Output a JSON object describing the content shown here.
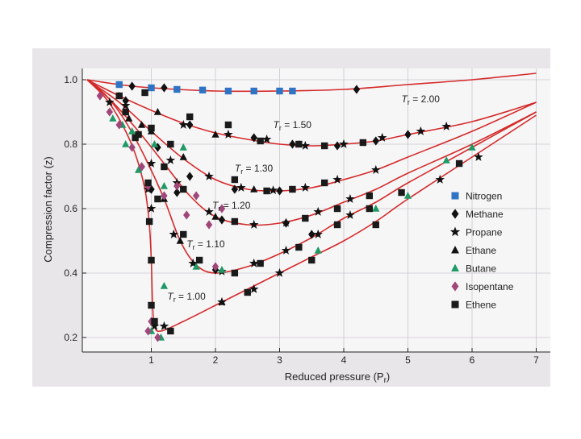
{
  "colors": {
    "page": "#ffffff",
    "photo": "#e9e6ea",
    "plot_bg": "#f7f6f7",
    "curve": "#d42a2a",
    "nitrogen": "#2f74c4",
    "methane": "#111111",
    "propane": "#111111",
    "ethane": "#111111",
    "butane": "#1f9a66",
    "isopentane": "#a0477a",
    "ethene": "#1a1a1a"
  },
  "chart_data": {
    "type": "scatter",
    "title": "",
    "xlabel": "Reduced pressure (P",
    "xlabel_sub": "r",
    "xlabel_close": ")",
    "ylabel": "Compression factor (z)",
    "xlim": [
      0,
      7.1
    ],
    "ylim": [
      0.2,
      1.0
    ],
    "xticks": [
      1,
      2,
      3,
      4,
      5,
      6,
      7
    ],
    "yticks": [
      0.2,
      0.4,
      0.6,
      0.8,
      1.0
    ],
    "ytick_labels": [
      "0.2",
      "0.4",
      "0.6",
      "0.8",
      "1.0"
    ],
    "grid": true,
    "legend_position": "right",
    "curves": [
      {
        "prefix": "T",
        "sub": "r",
        "text": " = 2.00",
        "label_at": [
          4.9,
          0.93
        ],
        "points": [
          [
            0,
            1.0
          ],
          [
            0.5,
            0.985
          ],
          [
            1,
            0.975
          ],
          [
            2,
            0.965
          ],
          [
            3,
            0.965
          ],
          [
            4,
            0.97
          ],
          [
            5,
            0.985
          ],
          [
            6,
            1.0
          ],
          [
            7,
            1.02
          ]
        ]
      },
      {
        "prefix": "T",
        "sub": "r",
        "text": " = 1.50",
        "label_at": [
          2.9,
          0.85
        ],
        "points": [
          [
            0,
            1.0
          ],
          [
            0.5,
            0.95
          ],
          [
            1,
            0.905
          ],
          [
            1.5,
            0.865
          ],
          [
            2,
            0.835
          ],
          [
            2.5,
            0.815
          ],
          [
            3,
            0.8
          ],
          [
            3.5,
            0.795
          ],
          [
            4,
            0.8
          ],
          [
            4.5,
            0.81
          ],
          [
            5,
            0.83
          ],
          [
            6,
            0.87
          ],
          [
            7,
            0.93
          ]
        ]
      },
      {
        "prefix": "T",
        "sub": "r",
        "text": " = 1.30",
        "label_at": [
          2.3,
          0.715
        ],
        "points": [
          [
            0,
            1.0
          ],
          [
            0.5,
            0.93
          ],
          [
            1,
            0.84
          ],
          [
            1.5,
            0.755
          ],
          [
            2,
            0.69
          ],
          [
            2.5,
            0.66
          ],
          [
            3,
            0.655
          ],
          [
            3.5,
            0.665
          ],
          [
            4,
            0.69
          ],
          [
            4.5,
            0.72
          ],
          [
            5,
            0.76
          ],
          [
            6,
            0.84
          ],
          [
            7,
            0.93
          ]
        ]
      },
      {
        "prefix": "T",
        "sub": "r",
        "text": " = 1.20",
        "label_at": [
          1.95,
          0.6
        ],
        "points": [
          [
            0,
            1.0
          ],
          [
            0.4,
            0.93
          ],
          [
            0.8,
            0.84
          ],
          [
            1.2,
            0.74
          ],
          [
            1.6,
            0.64
          ],
          [
            2,
            0.575
          ],
          [
            2.5,
            0.55
          ],
          [
            3,
            0.555
          ],
          [
            3.5,
            0.58
          ],
          [
            4,
            0.62
          ],
          [
            4.5,
            0.66
          ],
          [
            5,
            0.71
          ],
          [
            6,
            0.8
          ],
          [
            7,
            0.9
          ]
        ]
      },
      {
        "prefix": "T",
        "sub": "r",
        "text": " = 1.10",
        "label_at": [
          1.55,
          0.48
        ],
        "points": [
          [
            0,
            1.0
          ],
          [
            0.3,
            0.95
          ],
          [
            0.6,
            0.87
          ],
          [
            0.9,
            0.76
          ],
          [
            1.2,
            0.63
          ],
          [
            1.45,
            0.5
          ],
          [
            1.7,
            0.425
          ],
          [
            2,
            0.4
          ],
          [
            2.5,
            0.42
          ],
          [
            3,
            0.46
          ],
          [
            3.5,
            0.51
          ],
          [
            4,
            0.57
          ],
          [
            4.5,
            0.62
          ],
          [
            5,
            0.68
          ],
          [
            6,
            0.79
          ],
          [
            7,
            0.9
          ]
        ]
      },
      {
        "prefix": "T",
        "sub": "r",
        "text": " = 1.00",
        "label_at": [
          1.25,
          0.318
        ],
        "points": [
          [
            0,
            1.0
          ],
          [
            0.3,
            0.94
          ],
          [
            0.55,
            0.86
          ],
          [
            0.75,
            0.77
          ],
          [
            0.9,
            0.66
          ],
          [
            0.97,
            0.55
          ],
          [
            1.0,
            0.44
          ],
          [
            1.02,
            0.3
          ],
          [
            1.05,
            0.235
          ],
          [
            1.15,
            0.22
          ],
          [
            1.5,
            0.25
          ],
          [
            2,
            0.3
          ],
          [
            2.5,
            0.35
          ],
          [
            3,
            0.4
          ],
          [
            3.5,
            0.45
          ],
          [
            4,
            0.5
          ],
          [
            4.5,
            0.56
          ],
          [
            5,
            0.63
          ],
          [
            6,
            0.76
          ],
          [
            7,
            0.89
          ]
        ]
      }
    ],
    "legend": [
      {
        "name": "Nitrogen",
        "marker": "square",
        "color_key": "nitrogen"
      },
      {
        "name": "Methane",
        "marker": "diamond",
        "color_key": "methane"
      },
      {
        "name": "Propane",
        "marker": "star",
        "color_key": "propane"
      },
      {
        "name": "Ethane",
        "marker": "triangle",
        "color_key": "ethane"
      },
      {
        "name": "Butane",
        "marker": "triangle",
        "color_key": "butane"
      },
      {
        "name": "Isopentane",
        "marker": "diamond",
        "color_key": "isopentane"
      },
      {
        "name": "Ethene",
        "marker": "square",
        "color_key": "ethene"
      }
    ],
    "series": [
      {
        "name": "Nitrogen",
        "marker": "square",
        "color_key": "nitrogen",
        "points": [
          [
            0.5,
            0.985
          ],
          [
            1.0,
            0.975
          ],
          [
            1.4,
            0.97
          ],
          [
            1.8,
            0.968
          ],
          [
            2.2,
            0.965
          ],
          [
            2.6,
            0.965
          ],
          [
            3.0,
            0.965
          ],
          [
            3.2,
            0.965
          ]
        ]
      },
      {
        "name": "Methane",
        "marker": "diamond",
        "color_key": "methane",
        "points": [
          [
            0.7,
            0.98
          ],
          [
            1.2,
            0.975
          ],
          [
            4.2,
            0.97
          ],
          [
            0.6,
            0.935
          ],
          [
            1.6,
            0.86
          ],
          [
            2.6,
            0.82
          ],
          [
            3.2,
            0.8
          ],
          [
            3.9,
            0.795
          ],
          [
            4.5,
            0.81
          ],
          [
            5.0,
            0.83
          ],
          [
            1.1,
            0.79
          ],
          [
            1.6,
            0.7
          ],
          [
            2.3,
            0.66
          ],
          [
            3.0,
            0.655
          ],
          [
            1.4,
            0.65
          ],
          [
            2.1,
            0.565
          ],
          [
            3.1,
            0.555
          ],
          [
            1.0,
            0.66
          ],
          [
            2.0,
            0.41
          ],
          [
            3.5,
            0.52
          ],
          [
            0.85,
            0.73
          ]
        ]
      },
      {
        "name": "Propane",
        "marker": "star",
        "color_key": "propane",
        "points": [
          [
            1.5,
            0.86
          ],
          [
            2.2,
            0.83
          ],
          [
            2.8,
            0.815
          ],
          [
            3.4,
            0.795
          ],
          [
            4.0,
            0.8
          ],
          [
            4.6,
            0.82
          ],
          [
            5.2,
            0.84
          ],
          [
            5.6,
            0.855
          ],
          [
            1.3,
            0.75
          ],
          [
            1.9,
            0.7
          ],
          [
            2.4,
            0.665
          ],
          [
            2.9,
            0.657
          ],
          [
            3.4,
            0.665
          ],
          [
            3.9,
            0.69
          ],
          [
            4.5,
            0.72
          ],
          [
            1.0,
            0.74
          ],
          [
            1.4,
            0.68
          ],
          [
            1.9,
            0.59
          ],
          [
            2.6,
            0.55
          ],
          [
            3.1,
            0.556
          ],
          [
            3.6,
            0.59
          ],
          [
            4.1,
            0.63
          ],
          [
            1.0,
            0.6
          ],
          [
            1.35,
            0.52
          ],
          [
            1.65,
            0.43
          ],
          [
            2.1,
            0.405
          ],
          [
            2.6,
            0.43
          ],
          [
            3.1,
            0.47
          ],
          [
            3.6,
            0.52
          ],
          [
            4.1,
            0.58
          ],
          [
            0.95,
            0.66
          ],
          [
            1.05,
            0.235
          ],
          [
            1.2,
            0.235
          ],
          [
            2.1,
            0.31
          ],
          [
            2.6,
            0.35
          ],
          [
            3.0,
            0.4
          ],
          [
            5.5,
            0.69
          ],
          [
            6.1,
            0.76
          ],
          [
            0.6,
            0.92
          ],
          [
            0.35,
            0.93
          ]
        ]
      },
      {
        "name": "Ethane",
        "marker": "triangle",
        "color_key": "ethane",
        "points": [
          [
            0.5,
            0.95
          ],
          [
            1.1,
            0.9
          ],
          [
            1.0,
            0.84
          ],
          [
            2.0,
            0.83
          ],
          [
            3.3,
            0.8
          ],
          [
            2.6,
            0.66
          ],
          [
            1.5,
            0.76
          ],
          [
            2.0,
            0.575
          ],
          [
            1.2,
            0.63
          ],
          [
            1.45,
            0.5
          ],
          [
            2.1,
            0.31
          ],
          [
            0.85,
            0.86
          ],
          [
            0.65,
            0.88
          ]
        ]
      },
      {
        "name": "Butane",
        "marker": "triangle",
        "color_key": "butane",
        "points": [
          [
            0.4,
            0.88
          ],
          [
            0.55,
            0.86
          ],
          [
            0.7,
            0.84
          ],
          [
            0.6,
            0.8
          ],
          [
            0.8,
            0.72
          ],
          [
            1.05,
            0.8
          ],
          [
            1.5,
            0.79
          ],
          [
            1.2,
            0.67
          ],
          [
            1.0,
            0.44
          ],
          [
            1.2,
            0.36
          ],
          [
            1.7,
            0.42
          ],
          [
            2.1,
            0.41
          ],
          [
            3.6,
            0.47
          ],
          [
            4.5,
            0.6
          ],
          [
            5.0,
            0.64
          ],
          [
            5.6,
            0.75
          ],
          [
            6.0,
            0.79
          ],
          [
            1.0,
            0.22
          ],
          [
            1.15,
            0.2
          ]
        ]
      },
      {
        "name": "Isopentane",
        "marker": "diamond",
        "color_key": "isopentane",
        "points": [
          [
            0.2,
            0.95
          ],
          [
            0.35,
            0.9
          ],
          [
            0.5,
            0.86
          ],
          [
            0.7,
            0.79
          ],
          [
            0.85,
            0.73
          ],
          [
            0.95,
            0.67
          ],
          [
            0.95,
            0.22
          ],
          [
            1.0,
            0.25
          ],
          [
            1.1,
            0.2
          ],
          [
            1.2,
            0.64
          ],
          [
            1.4,
            0.67
          ],
          [
            1.55,
            0.58
          ],
          [
            1.7,
            0.64
          ],
          [
            1.9,
            0.55
          ],
          [
            2.0,
            0.42
          ],
          [
            2.1,
            0.6
          ]
        ]
      },
      {
        "name": "Ethene",
        "marker": "square",
        "color_key": "ethene",
        "points": [
          [
            0.9,
            0.96
          ],
          [
            1.6,
            0.885
          ],
          [
            2.2,
            0.86
          ],
          [
            2.7,
            0.81
          ],
          [
            3.3,
            0.8
          ],
          [
            3.7,
            0.795
          ],
          [
            4.3,
            0.805
          ],
          [
            1.0,
            0.85
          ],
          [
            1.3,
            0.8
          ],
          [
            2.3,
            0.69
          ],
          [
            2.8,
            0.655
          ],
          [
            3.2,
            0.66
          ],
          [
            3.7,
            0.68
          ],
          [
            1.2,
            0.73
          ],
          [
            1.5,
            0.66
          ],
          [
            2.3,
            0.56
          ],
          [
            3.4,
            0.57
          ],
          [
            3.9,
            0.6
          ],
          [
            4.4,
            0.64
          ],
          [
            0.95,
            0.68
          ],
          [
            1.1,
            0.63
          ],
          [
            1.5,
            0.52
          ],
          [
            1.75,
            0.44
          ],
          [
            2.3,
            0.4
          ],
          [
            2.7,
            0.43
          ],
          [
            3.3,
            0.48
          ],
          [
            3.9,
            0.55
          ],
          [
            4.4,
            0.6
          ],
          [
            4.9,
            0.65
          ],
          [
            0.8,
            0.83
          ],
          [
            0.97,
            0.56
          ],
          [
            1.0,
            0.44
          ],
          [
            1.0,
            0.3
          ],
          [
            1.05,
            0.25
          ],
          [
            1.3,
            0.22
          ],
          [
            2.5,
            0.34
          ],
          [
            3.5,
            0.44
          ],
          [
            4.5,
            0.55
          ],
          [
            5.8,
            0.74
          ],
          [
            0.75,
            0.82
          ],
          [
            0.6,
            0.9
          ],
          [
            0.5,
            0.95
          ]
        ]
      }
    ]
  }
}
